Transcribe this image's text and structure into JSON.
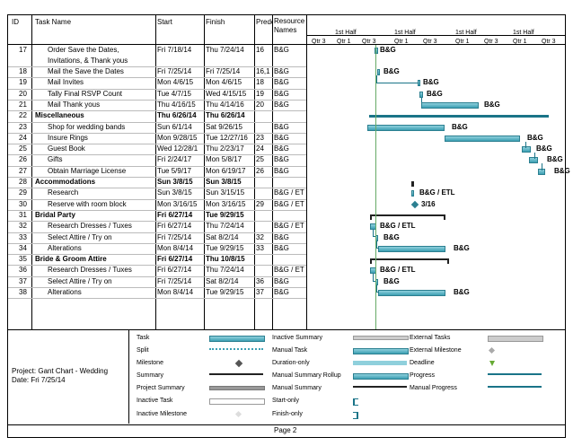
{
  "columns": {
    "id": "ID",
    "task": "Task Name",
    "start": "Start",
    "finish": "Finish",
    "pred": "Predecessors",
    "res": "Resource Names"
  },
  "timescale": {
    "halves": [
      "1st Half",
      "1st Half",
      "1st Half",
      "1st Half"
    ],
    "quarters": [
      "Qtr 3",
      "Qtr 1",
      "Qtr 3",
      "Qtr 1",
      "Qtr 3",
      "Qtr 1",
      "Qtr 3",
      "Qtr 1",
      "Qtr 3"
    ]
  },
  "rows": [
    {
      "id": "17",
      "task": "Order Save the Dates, Invitations, & Thank yous",
      "start": "Fri 7/18/14",
      "finish": "Thu 7/24/14",
      "pred": "16",
      "res": "B&G",
      "bold": false,
      "indent": true
    },
    {
      "id": "18",
      "task": "Mail the Save the Dates",
      "start": "Fri 7/25/14",
      "finish": "Fri 7/25/14",
      "pred": "16,1",
      "res": "B&G",
      "bold": false,
      "indent": true
    },
    {
      "id": "19",
      "task": "Mail Invites",
      "start": "Mon 4/6/15",
      "finish": "Mon 4/6/15",
      "pred": "18",
      "res": "B&G",
      "bold": false,
      "indent": true
    },
    {
      "id": "20",
      "task": "Tally Final RSVP Count",
      "start": "Tue 4/7/15",
      "finish": "Wed 4/15/15",
      "pred": "19",
      "res": "B&G",
      "bold": false,
      "indent": true
    },
    {
      "id": "21",
      "task": "Mail Thank yous",
      "start": "Thu 4/16/15",
      "finish": "Thu 4/14/16",
      "pred": "20",
      "res": "B&G",
      "bold": false,
      "indent": true
    },
    {
      "id": "22",
      "task": "Miscellaneous",
      "start": "Thu 6/26/14",
      "finish": "Thu 6/26/14",
      "pred": "",
      "res": "",
      "bold": true,
      "indent": false
    },
    {
      "id": "23",
      "task": "Shop for wedding bands",
      "start": "Sun 6/1/14",
      "finish": "Sat 9/26/15",
      "pred": "",
      "res": "B&G",
      "bold": false,
      "indent": true
    },
    {
      "id": "24",
      "task": "Insure Rings",
      "start": "Mon 9/28/15",
      "finish": "Tue 12/27/16",
      "pred": "23",
      "res": "B&G",
      "bold": false,
      "indent": true
    },
    {
      "id": "25",
      "task": "Guest Book",
      "start": "Wed 12/28/1",
      "finish": "Thu 2/23/17",
      "pred": "24",
      "res": "B&G",
      "bold": false,
      "indent": true
    },
    {
      "id": "26",
      "task": "Gifts",
      "start": "Fri 2/24/17",
      "finish": "Mon 5/8/17",
      "pred": "25",
      "res": "B&G",
      "bold": false,
      "indent": true
    },
    {
      "id": "27",
      "task": "Obtain Marriage License",
      "start": "Tue 5/9/17",
      "finish": "Mon 6/19/17",
      "pred": "26",
      "res": "B&G",
      "bold": false,
      "indent": true
    },
    {
      "id": "28",
      "task": "Accommodations",
      "start": "Sun 3/8/15",
      "finish": "Sun 3/8/15",
      "pred": "",
      "res": "",
      "bold": true,
      "indent": false
    },
    {
      "id": "29",
      "task": "Research",
      "start": "Sun 3/8/15",
      "finish": "Sun 3/15/15",
      "pred": "",
      "res": "B&G / ET",
      "bold": false,
      "indent": true
    },
    {
      "id": "30",
      "task": "Reserve with room block",
      "start": "Mon 3/16/15",
      "finish": "Mon 3/16/15",
      "pred": "29",
      "res": "B&G / ET",
      "bold": false,
      "indent": true
    },
    {
      "id": "31",
      "task": "Bridal Party",
      "start": "Fri 6/27/14",
      "finish": "Tue 9/29/15",
      "pred": "",
      "res": "",
      "bold": true,
      "indent": false
    },
    {
      "id": "32",
      "task": "Research Dresses / Tuxes",
      "start": "Fri 6/27/14",
      "finish": "Thu 7/24/14",
      "pred": "",
      "res": "B&G / ET",
      "bold": false,
      "indent": true
    },
    {
      "id": "33",
      "task": "Select Attire / Try on",
      "start": "Fri 7/25/14",
      "finish": "Sat 8/2/14",
      "pred": "32",
      "res": "B&G",
      "bold": false,
      "indent": true
    },
    {
      "id": "34",
      "task": "Alterations",
      "start": "Mon 8/4/14",
      "finish": "Tue 9/29/15",
      "pred": "33",
      "res": "B&G",
      "bold": false,
      "indent": true
    },
    {
      "id": "35",
      "task": "Bride & Groom Attire",
      "start": "Fri 6/27/14",
      "finish": "Thu 10/8/15",
      "pred": "",
      "res": "",
      "bold": true,
      "indent": false
    },
    {
      "id": "36",
      "task": "Research Dresses / Tuxes",
      "start": "Fri 6/27/14",
      "finish": "Thu 7/24/14",
      "pred": "",
      "res": "B&G / ET",
      "bold": false,
      "indent": true
    },
    {
      "id": "37",
      "task": "Select Attire / Try on",
      "start": "Fri 7/25/14",
      "finish": "Sat 8/2/14",
      "pred": "36",
      "res": "B&G",
      "bold": false,
      "indent": true
    },
    {
      "id": "38",
      "task": "Alterations",
      "start": "Mon 8/4/14",
      "finish": "Tue 9/29/15",
      "pred": "37",
      "res": "B&G",
      "bold": false,
      "indent": true
    }
  ],
  "bar_labels": {
    "r17": "B&G",
    "r18": "B&G",
    "r19": "B&G",
    "r20": "B&G",
    "r21": "B&G",
    "r23": "B&G",
    "r24": "B&G",
    "r25": "B&G",
    "r26": "B&G",
    "r27": "B&G",
    "r29": "B&G / ETL",
    "r30": "3/16",
    "r32": "B&G / ETL",
    "r33": "B&G",
    "r34": "B&G",
    "r36": "B&G / ETL",
    "r37": "B&G",
    "r38": "B&G"
  },
  "footer": {
    "project": "Project: Gant Chart - Wedding",
    "date": "Date: Fri 7/25/14",
    "page": "Page 2"
  },
  "legend": {
    "col1": [
      "Task",
      "Split",
      "Milestone",
      "Summary",
      "Project Summary",
      "Inactive Task",
      "Inactive Milestone"
    ],
    "col2": [
      "Inactive Summary",
      "Manual Task",
      "Duration-only",
      "Manual Summary Rollup",
      "Manual Summary",
      "Start-only",
      "Finish-only"
    ],
    "col3": [
      "External Tasks",
      "External Milestone",
      "Deadline",
      "Progress",
      "Manual Progress"
    ]
  },
  "colors": {
    "bar": "#3c9fb3",
    "summary": "#1a7488",
    "border": "#000000"
  }
}
